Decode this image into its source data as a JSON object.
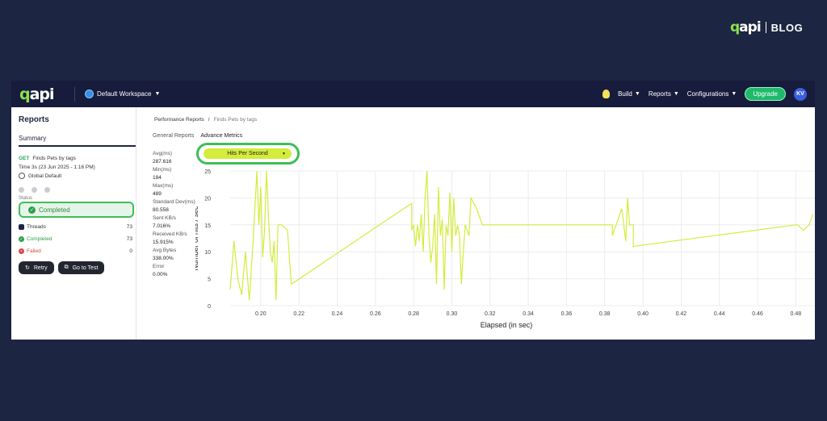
{
  "brand": {
    "logo": "qapi",
    "blog": "BLOG"
  },
  "app": {
    "logo": "qapi",
    "workspace": "Default Workspace",
    "nav": {
      "build": "Build",
      "reports": "Reports",
      "configurations": "Configurations",
      "upgrade": "Upgrade",
      "avatar": "KV"
    }
  },
  "sidebar": {
    "title": "Reports",
    "summary_tab": "Summary",
    "test_method": "GET",
    "test_name": "Finds Pets by tags",
    "time": "Time  3s (23 Jun 2025 - 1:16 PM)",
    "environment": "Global Default",
    "status_label": "Status",
    "status_value": "Completed",
    "threads_label": "Threads",
    "threads_value": "73",
    "completed_label": "Completed",
    "completed_value": "73",
    "failed_label": "Failed",
    "failed_value": "0",
    "retry_label": "Retry",
    "go_to_test_label": "Go to Test"
  },
  "main": {
    "breadcrumb_parent": "Performance Reports",
    "breadcrumb_sep": "/",
    "breadcrumb_current": "Finds Pets by tags",
    "tab_general": "General Reports",
    "tab_advance": "Advance Metrics",
    "dropdown_value": "Hits Per Second"
  },
  "metrics": [
    {
      "label": "Avg(ms)",
      "value": "287.616"
    },
    {
      "label": "Min(ms)",
      "value": "184"
    },
    {
      "label": "Max(ms)",
      "value": "489"
    },
    {
      "label": "Standard Dev(ms)",
      "value": "80.558"
    },
    {
      "label": "Sent KB/s",
      "value": "7.016%"
    },
    {
      "label": "Received KB/s",
      "value": "15.915%"
    },
    {
      "label": "Avg Bytes",
      "value": "338.00%"
    },
    {
      "label": "Error",
      "value": "0.00%"
    }
  ],
  "colors": {
    "line": "#d4ec3c",
    "ring": "#3fbd55",
    "topbar": "#171c3c",
    "background": "#1c2541"
  },
  "chart_data": {
    "type": "line",
    "xlabel": "Elapsed (in sec)",
    "ylabel": "Number of hits / sec",
    "xlim": [
      0.184,
      0.49
    ],
    "ylim": [
      0,
      25
    ],
    "xticks": [
      "0.20",
      "0.22",
      "0.24",
      "0.26",
      "0.28",
      "0.30",
      "0.32",
      "0.34",
      "0.36",
      "0.38",
      "0.40",
      "0.42",
      "0.44",
      "0.46",
      "0.48"
    ],
    "yticks": [
      "0",
      "5",
      "10",
      "15",
      "20",
      "25"
    ],
    "grid": true,
    "x": [
      0.184,
      0.186,
      0.188,
      0.19,
      0.192,
      0.194,
      0.196,
      0.198,
      0.199,
      0.2,
      0.201,
      0.202,
      0.203,
      0.204,
      0.205,
      0.206,
      0.207,
      0.208,
      0.209,
      0.211,
      0.214,
      0.216,
      0.279,
      0.279,
      0.28,
      0.281,
      0.282,
      0.283,
      0.284,
      0.285,
      0.286,
      0.287,
      0.288,
      0.289,
      0.29,
      0.291,
      0.292,
      0.293,
      0.294,
      0.295,
      0.296,
      0.297,
      0.298,
      0.299,
      0.3,
      0.301,
      0.302,
      0.303,
      0.304,
      0.305,
      0.306,
      0.307,
      0.309,
      0.31,
      0.313,
      0.316,
      0.318,
      0.384,
      0.384,
      0.386,
      0.389,
      0.391,
      0.392,
      0.393,
      0.395,
      0.395,
      0.48,
      0.481,
      0.484,
      0.487,
      0.489
    ],
    "y": [
      3,
      12,
      5,
      2,
      10,
      1,
      12,
      25,
      15,
      22,
      9,
      14,
      25,
      17,
      10,
      8,
      12,
      1,
      15,
      15,
      14,
      4,
      19,
      14,
      15,
      11,
      15,
      12,
      17,
      10,
      20,
      25,
      13,
      8,
      11,
      17,
      4,
      22,
      13,
      16,
      3,
      15,
      13,
      21,
      10,
      20,
      13,
      15,
      13,
      4,
      10,
      15,
      13,
      20,
      18,
      15,
      15,
      15,
      13,
      15,
      18,
      12,
      20,
      15,
      15,
      11,
      15,
      15,
      14,
      15,
      17
    ]
  }
}
